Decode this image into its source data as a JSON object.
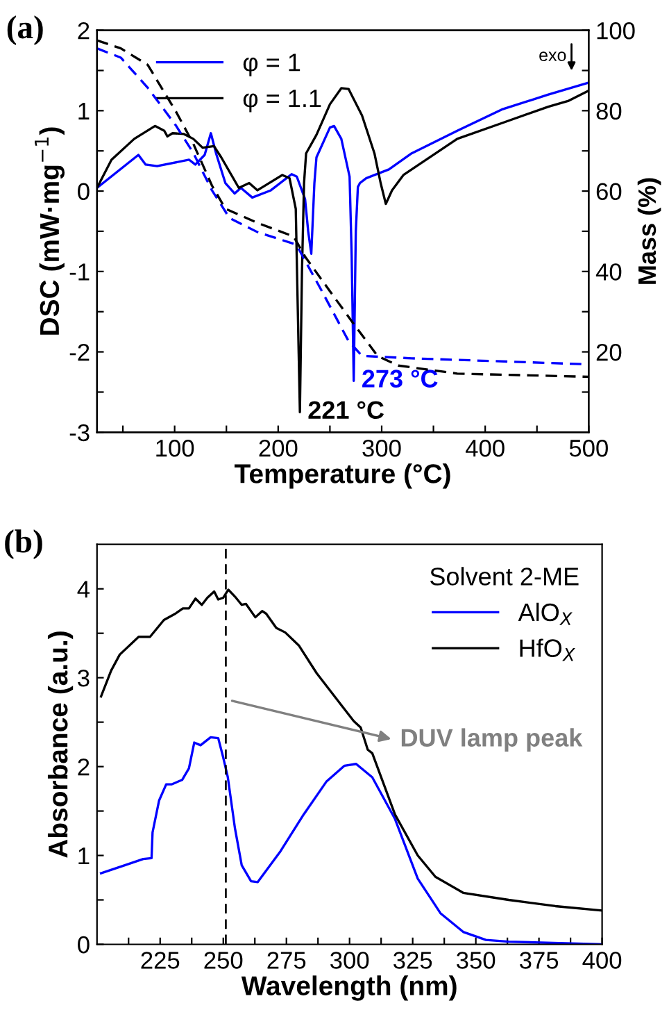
{
  "chart_data": [
    {
      "type": "line",
      "title": "(a)",
      "xlabel": "Temperature (°C)",
      "ylabel": "DSC (mW·mg$^{−1}$)",
      "y2label": "Mass (%)",
      "legend": "top center",
      "marker": "none",
      "xlim": [
        25,
        500
      ],
      "xticks": [
        {
          "value": 50,
          "label": null
        },
        100,
        {
          "value": 150,
          "label": null
        },
        200,
        {
          "value": 250,
          "label": null
        },
        300,
        {
          "value": 350,
          "label": null
        },
        400,
        {
          "value": 450,
          "label": null
        },
        500
      ],
      "ylim": [
        -3,
        2
      ],
      "yticks": [
        -3,
        {
          "value": -2.5,
          "label": null
        },
        -2,
        {
          "value": -1.5,
          "label": null
        },
        -1,
        {
          "value": -0.5,
          "label": null
        },
        0,
        {
          "value": 0.5,
          "label": null
        },
        1,
        {
          "value": 1.5,
          "label": null
        },
        2
      ],
      "y2lim": [
        0,
        100
      ],
      "y2ticks": [
        {
          "value": 10,
          "label": null
        },
        20,
        {
          "value": 30,
          "label": null
        },
        40,
        {
          "value": 50,
          "label": null
        },
        60,
        {
          "value": 70,
          "label": null
        },
        80,
        {
          "value": 90,
          "label": null
        },
        100
      ],
      "series": [
        {
          "name": "φ = 1",
          "color": "#0000ff",
          "line_style": "solid",
          "x": [
            25,
            65,
            72,
            83,
            114,
            120,
            129,
            135,
            140,
            149,
            158,
            164,
            175,
            193,
            213,
            218,
            226,
            229,
            232,
            235,
            237,
            250,
            254,
            261,
            269,
            271,
            273,
            275,
            277,
            279,
            285,
            307,
            329,
            373,
            417,
            461,
            500
          ],
          "values": [
            0.04,
            0.45,
            0.33,
            0.31,
            0.39,
            0.33,
            0.45,
            0.72,
            0.47,
            0.1,
            -0.03,
            0.04,
            -0.08,
            0.01,
            0.21,
            0.18,
            -0.1,
            -0.5,
            -0.78,
            0.1,
            0.42,
            0.79,
            0.81,
            0.65,
            0.18,
            -0.8,
            -2.36,
            -0.5,
            0.05,
            0.1,
            0.16,
            0.27,
            0.47,
            0.75,
            1.02,
            1.2,
            1.35
          ]
        },
        {
          "name": "φ = 1.1",
          "color": "#000000",
          "line_style": "solid",
          "x": [
            25,
            39,
            61,
            81,
            90,
            93,
            98,
            109,
            118,
            127,
            138,
            145,
            162,
            172,
            180,
            204,
            211,
            217,
            219,
            221,
            223,
            225,
            227,
            237,
            250,
            261,
            268,
            281,
            293,
            299,
            304,
            310,
            321,
            373,
            417,
            461,
            480,
            500
          ],
          "values": [
            0.04,
            0.39,
            0.65,
            0.81,
            0.75,
            0.68,
            0.72,
            0.71,
            0.65,
            0.54,
            0.56,
            0.42,
            0.04,
            0.1,
            0.01,
            0.2,
            0.16,
            -0.22,
            -1.5,
            -2.75,
            -1.0,
            0.1,
            0.47,
            0.7,
            1.08,
            1.28,
            1.27,
            0.94,
            0.47,
            0.1,
            -0.16,
            0.01,
            0.2,
            0.65,
            0.85,
            1.05,
            1.12,
            1.25
          ]
        },
        {
          "color": "#0000ff",
          "line_style": "dashed",
          "axis": "y2",
          "x": [
            25,
            48,
            74,
            101,
            118,
            136,
            153,
            180,
            215,
            219,
            241,
            268,
            281,
            329,
            500
          ],
          "values": [
            95.5,
            93.2,
            85.7,
            76.4,
            69.5,
            60.2,
            53.3,
            49.8,
            46.9,
            46,
            35.7,
            22.7,
            19,
            18.4,
            16.9
          ]
        },
        {
          "color": "#000000",
          "line_style": "dashed",
          "axis": "y2",
          "x": [
            25,
            48,
            74,
            101,
            118,
            136,
            149,
            180,
            215,
            226,
            250,
            274,
            296,
            316,
            373,
            500
          ],
          "values": [
            97.5,
            95.5,
            91.4,
            79.9,
            71.8,
            61.4,
            55.6,
            52.1,
            48.7,
            43.7,
            35.1,
            26.6,
            19,
            16.6,
            14.6,
            13.8
          ]
        }
      ],
      "annotations": [
        {
          "text": "273 °C",
          "x": 273,
          "y": -2.36
        },
        {
          "text": "221 °C",
          "x": 221,
          "y": -2.75
        },
        "exo"
      ]
    },
    {
      "type": "line",
      "title": "(b)",
      "xlabel": "Wavelength (nm)",
      "ylabel": "Absorbance (a.u.)",
      "legend": "top right",
      "legend_title": "Solvent 2-ME",
      "marker": "none",
      "xlim": [
        200,
        400
      ],
      "xticks": [
        {
          "value": 212.5,
          "label": null
        },
        225,
        {
          "value": 237.5,
          "label": null
        },
        250,
        {
          "value": 262.5,
          "label": null
        },
        275,
        {
          "value": 287.5,
          "label": null
        },
        300,
        {
          "value": 312.5,
          "label": null
        },
        325,
        {
          "value": 337.5,
          "label": null
        },
        350,
        {
          "value": 362.5,
          "label": null
        },
        375,
        {
          "value": 387.5,
          "label": null
        },
        400
      ],
      "ylim": [
        0,
        4.5
      ],
      "yticks": [
        0,
        {
          "value": 0.5,
          "label": null
        },
        1,
        {
          "value": 1.5,
          "label": null
        },
        2,
        {
          "value": 2.5,
          "label": null
        },
        3,
        {
          "value": 3.5,
          "label": null
        },
        4
      ],
      "series": [
        {
          "name": "AlO$_{X}$",
          "color": "#0000ff",
          "line_style": "solid",
          "x": [
            201.6,
            211,
            218.3,
            221.6,
            222,
            224.6,
            227.4,
            229.5,
            233.7,
            236.4,
            238.5,
            241,
            245,
            248,
            250,
            251.8,
            254.6,
            257.3,
            261,
            263.6,
            272.7,
            281.8,
            290.8,
            298,
            302.6,
            309,
            318,
            327,
            336,
            345,
            354,
            363,
            400
          ],
          "values": [
            0.8,
            0.89,
            0.96,
            0.97,
            1.26,
            1.62,
            1.8,
            1.8,
            1.85,
            1.98,
            2.27,
            2.24,
            2.33,
            2.32,
            2.1,
            1.88,
            1.31,
            0.89,
            0.71,
            0.7,
            1.05,
            1.46,
            1.83,
            2.01,
            2.03,
            1.88,
            1.41,
            0.74,
            0.35,
            0.14,
            0.05,
            0.03,
            0.0
          ]
        },
        {
          "name": "HfO$_{X}$",
          "color": "#000000",
          "line_style": "solid",
          "x": [
            201.6,
            205.6,
            209,
            216.5,
            221,
            226.5,
            231,
            234,
            236.4,
            239,
            241.5,
            243.7,
            246.4,
            248,
            250,
            252,
            255,
            257.3,
            259,
            262.7,
            265.4,
            267,
            271,
            274.5,
            280,
            287,
            294.6,
            301.7,
            304.4,
            307.2,
            309,
            318,
            327,
            334,
            345,
            363,
            381.5,
            400
          ],
          "values": [
            2.79,
            3.08,
            3.26,
            3.46,
            3.46,
            3.65,
            3.72,
            3.78,
            3.78,
            3.89,
            3.82,
            3.9,
            3.97,
            3.88,
            3.9,
            3.99,
            3.9,
            3.82,
            3.83,
            3.68,
            3.75,
            3.72,
            3.56,
            3.51,
            3.36,
            3.05,
            2.77,
            2.51,
            2.44,
            2.19,
            2.15,
            1.46,
            1.0,
            0.76,
            0.58,
            0.5,
            0.43,
            0.38
          ]
        }
      ],
      "ref_lines": [
        {
          "axis": "x",
          "value": 251,
          "color": "#000000",
          "line_style": "dashed"
        }
      ],
      "annotations": [
        {
          "text": "DUV lamp peak",
          "x": 252,
          "y": 2.75
        }
      ]
    }
  ]
}
